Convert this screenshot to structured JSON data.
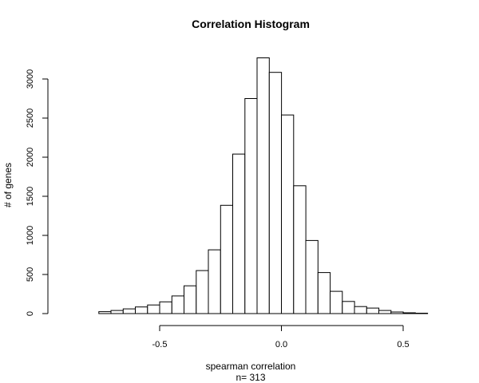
{
  "chart_data": {
    "type": "bar",
    "title": "Correlation Histogram",
    "xlabel": "spearman correlation",
    "subtitle": "n= 313",
    "ylabel": "# of genes",
    "bin_width": 0.05,
    "bins_start": [
      -0.75,
      -0.7,
      -0.65,
      -0.6,
      -0.55,
      -0.5,
      -0.45,
      -0.4,
      -0.35,
      -0.3,
      -0.25,
      -0.2,
      -0.15,
      -0.1,
      -0.05,
      0.0,
      0.05,
      0.1,
      0.15,
      0.2,
      0.25,
      0.3,
      0.35,
      0.4,
      0.45,
      0.5,
      0.55
    ],
    "values": [
      25,
      40,
      60,
      85,
      110,
      150,
      225,
      355,
      550,
      815,
      1385,
      2040,
      2750,
      3270,
      3085,
      2540,
      1635,
      935,
      525,
      285,
      155,
      90,
      70,
      40,
      20,
      10,
      5
    ],
    "xlim": [
      -0.9,
      0.65
    ],
    "ylim": [
      0,
      3300
    ],
    "x_ticks": [
      -0.5,
      0.0,
      0.5
    ],
    "x_tick_labels": [
      "-0.5",
      "0.0",
      "0.5"
    ],
    "y_ticks": [
      0,
      500,
      1000,
      1500,
      2000,
      2500,
      3000
    ],
    "y_tick_labels": [
      "0",
      "500",
      "1000",
      "1500",
      "2000",
      "2500",
      "3000"
    ],
    "grid": false,
    "colors": {
      "bar_fill": "#ffffff",
      "bar_stroke": "#000000"
    }
  }
}
